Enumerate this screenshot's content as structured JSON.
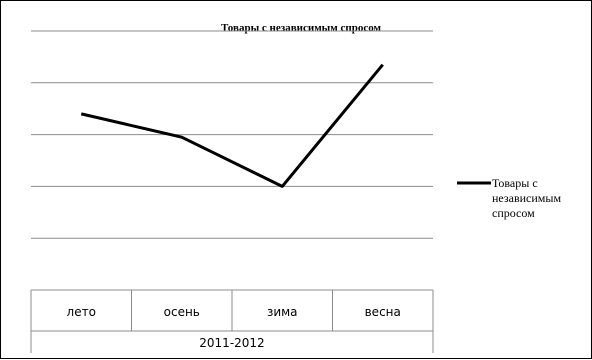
{
  "chart_data": {
    "type": "line",
    "title": "Товары  с независимым  спросом",
    "categories": [
      "лето",
      "осень",
      "зима",
      "весна"
    ],
    "category_group": "2011-2012",
    "series": [
      {
        "name": "Товары с независимым спросом",
        "values": [
          3.4,
          2.95,
          2.0,
          4.35
        ],
        "color": "#000000"
      }
    ],
    "ylim": [
      0,
      5
    ],
    "grid": true,
    "legend_position": "right",
    "legend_lines": [
      "Товары с",
      "независимым",
      "спросом"
    ]
  }
}
